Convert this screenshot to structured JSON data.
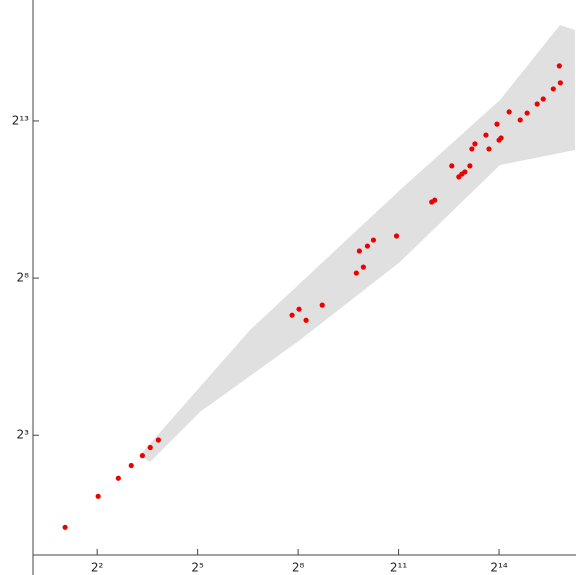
{
  "chart_data": {
    "type": "scatter",
    "log_base": 2,
    "color": "#ee0000",
    "x": [
      2.06,
      4.08,
      6.2,
      8.1,
      10.2,
      12.0,
      14.2,
      226,
      261,
      302,
      422,
      855,
      910,
      989,
      1075,
      1218,
      1964,
      4067,
      4330,
      6164,
      7130,
      7590,
      8080,
      8960,
      9340,
      9950,
      12500,
      13300,
      15700,
      16400,
      17100,
      20200,
      25400,
      29300,
      36100,
      40900,
      50400,
      57100,
      58300
    ],
    "values": [
      1.05,
      2.08,
      3.1,
      4.1,
      5.1,
      6.1,
      7.2,
      113,
      129,
      101,
      141,
      286,
      465,
      326,
      519,
      592,
      648,
      1370,
      1428,
      3040,
      2385,
      2540,
      2660,
      3040,
      4420,
      4940,
      6000,
      4420,
      7640,
      5370,
      5630,
      10000,
      8370,
      9750,
      11900,
      13300,
      16600,
      27600,
      19000
    ],
    "xlim": [
      1.06,
      80600
    ],
    "ylim": [
      0.57,
      118000
    ],
    "xticks": [
      {
        "value": 4,
        "label": "2²"
      },
      {
        "value": 32,
        "label": "2⁵"
      },
      {
        "value": 256,
        "label": "2⁸"
      },
      {
        "value": 2048,
        "label": "2¹¹"
      },
      {
        "value": 16384,
        "label": "2¹⁴"
      }
    ],
    "yticks": [
      {
        "value": 8,
        "label": "2³"
      },
      {
        "value": 256,
        "label": "2⁸"
      },
      {
        "value": 8192,
        "label": "2¹³"
      }
    ]
  }
}
